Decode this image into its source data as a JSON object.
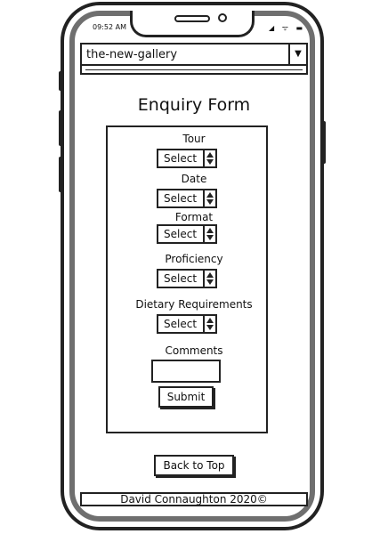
{
  "status_bar": {
    "time": "09:52 AM",
    "icons": "◢ ᯤ ▬"
  },
  "nav": {
    "selected": "the-new-gallery",
    "arrow": "▼"
  },
  "page": {
    "title": "Enquiry Form"
  },
  "form": {
    "fields": [
      {
        "label": "Tour",
        "value": "Select"
      },
      {
        "label": "Date",
        "value": "Select"
      },
      {
        "label": "Format",
        "value": "Select"
      },
      {
        "label": "Proficiency",
        "value": "Select"
      },
      {
        "label": "Dietary Requirements",
        "value": "Select"
      }
    ],
    "comments_label": "Comments",
    "submit_label": "Submit"
  },
  "back_to_top_label": "Back to Top",
  "footer": {
    "text": "David Connaughton 2020©"
  }
}
